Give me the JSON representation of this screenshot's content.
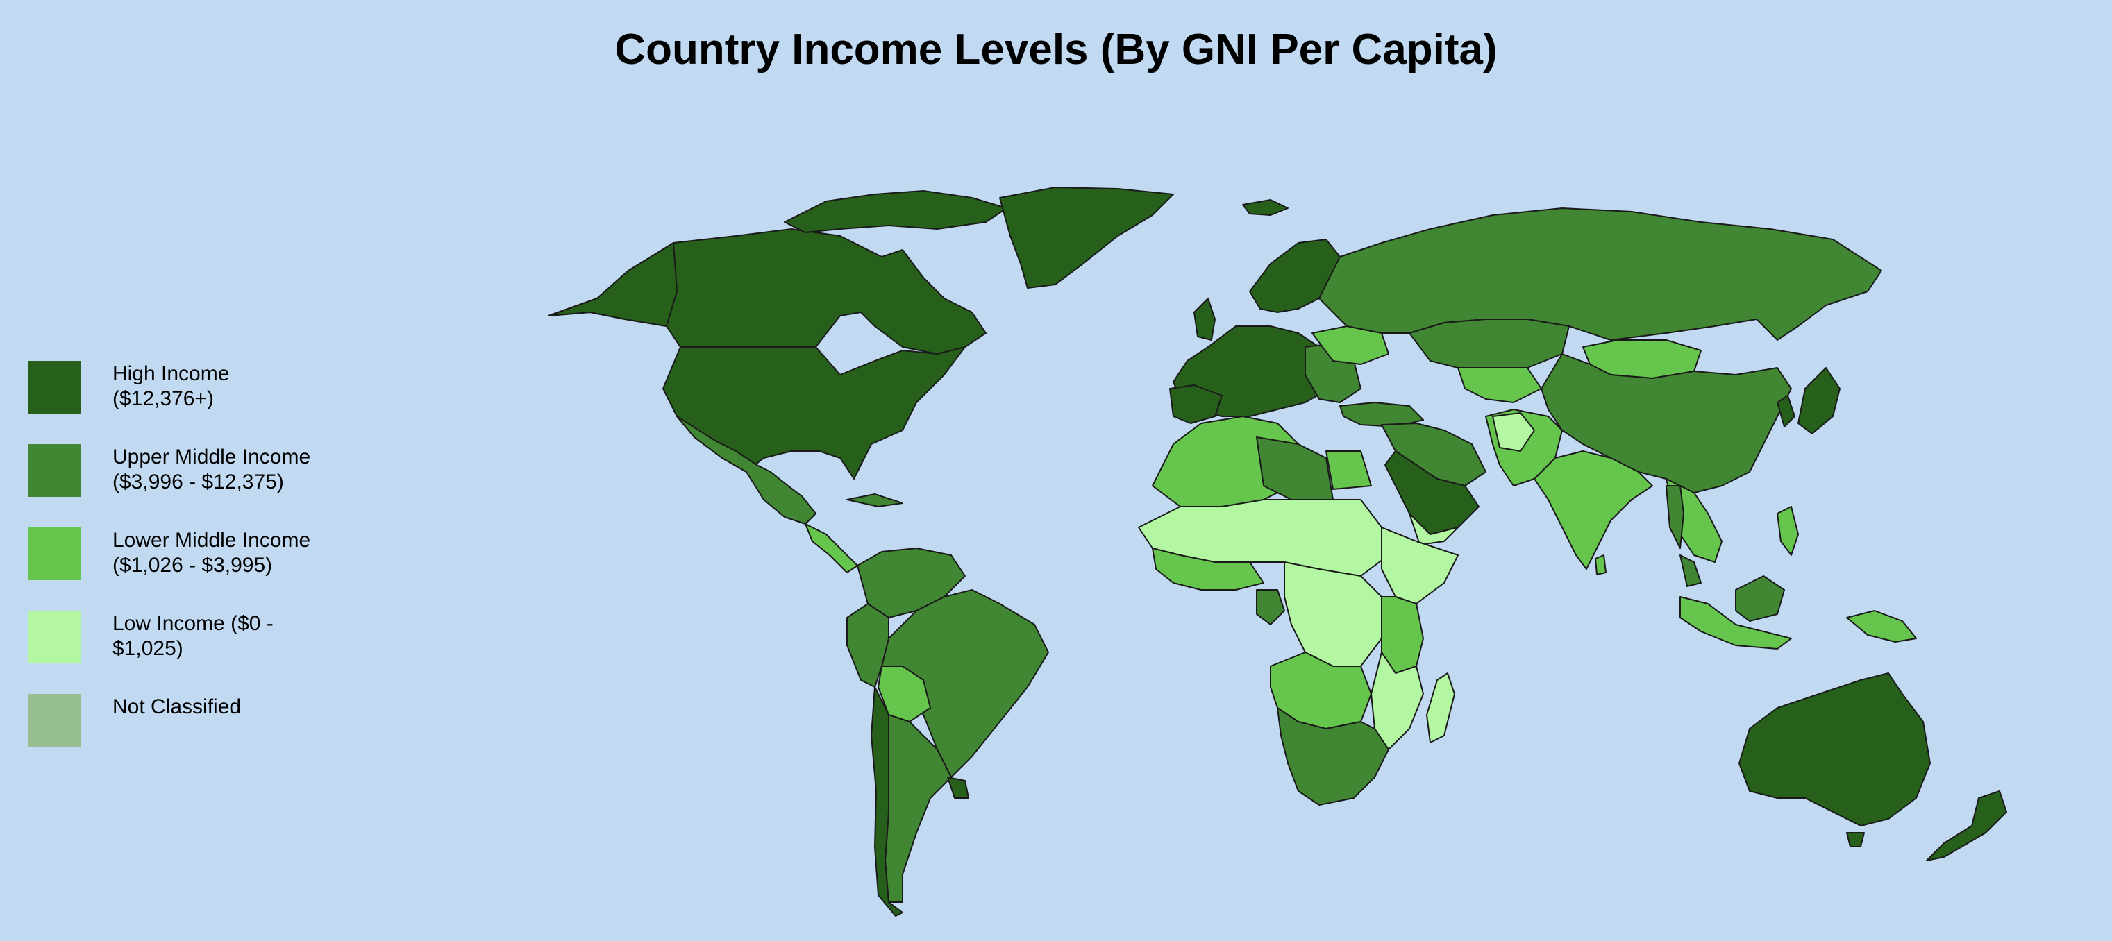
{
  "title": "Country Income Levels (By GNI Per Capita)",
  "legend": [
    {
      "label": "High Income\n($12,376+)",
      "color": "#27601a"
    },
    {
      "label": "Upper Middle Income\n($3,996 - $12,375)",
      "color": "#418632"
    },
    {
      "label": "Lower Middle Income\n($1,026 - $3,995)",
      "color": "#66c54c"
    },
    {
      "label": "Low Income ($0 -\n$1,025)",
      "color": "#b3f7a3"
    },
    {
      "label": "Not Classified",
      "color": "#98bf92"
    }
  ],
  "colors": {
    "ocean": "#c1daf2",
    "high": "#27601a",
    "upper_middle": "#418632",
    "lower_middle": "#66c54c",
    "low": "#b3f7a3",
    "not_classified": "#98bf92"
  }
}
